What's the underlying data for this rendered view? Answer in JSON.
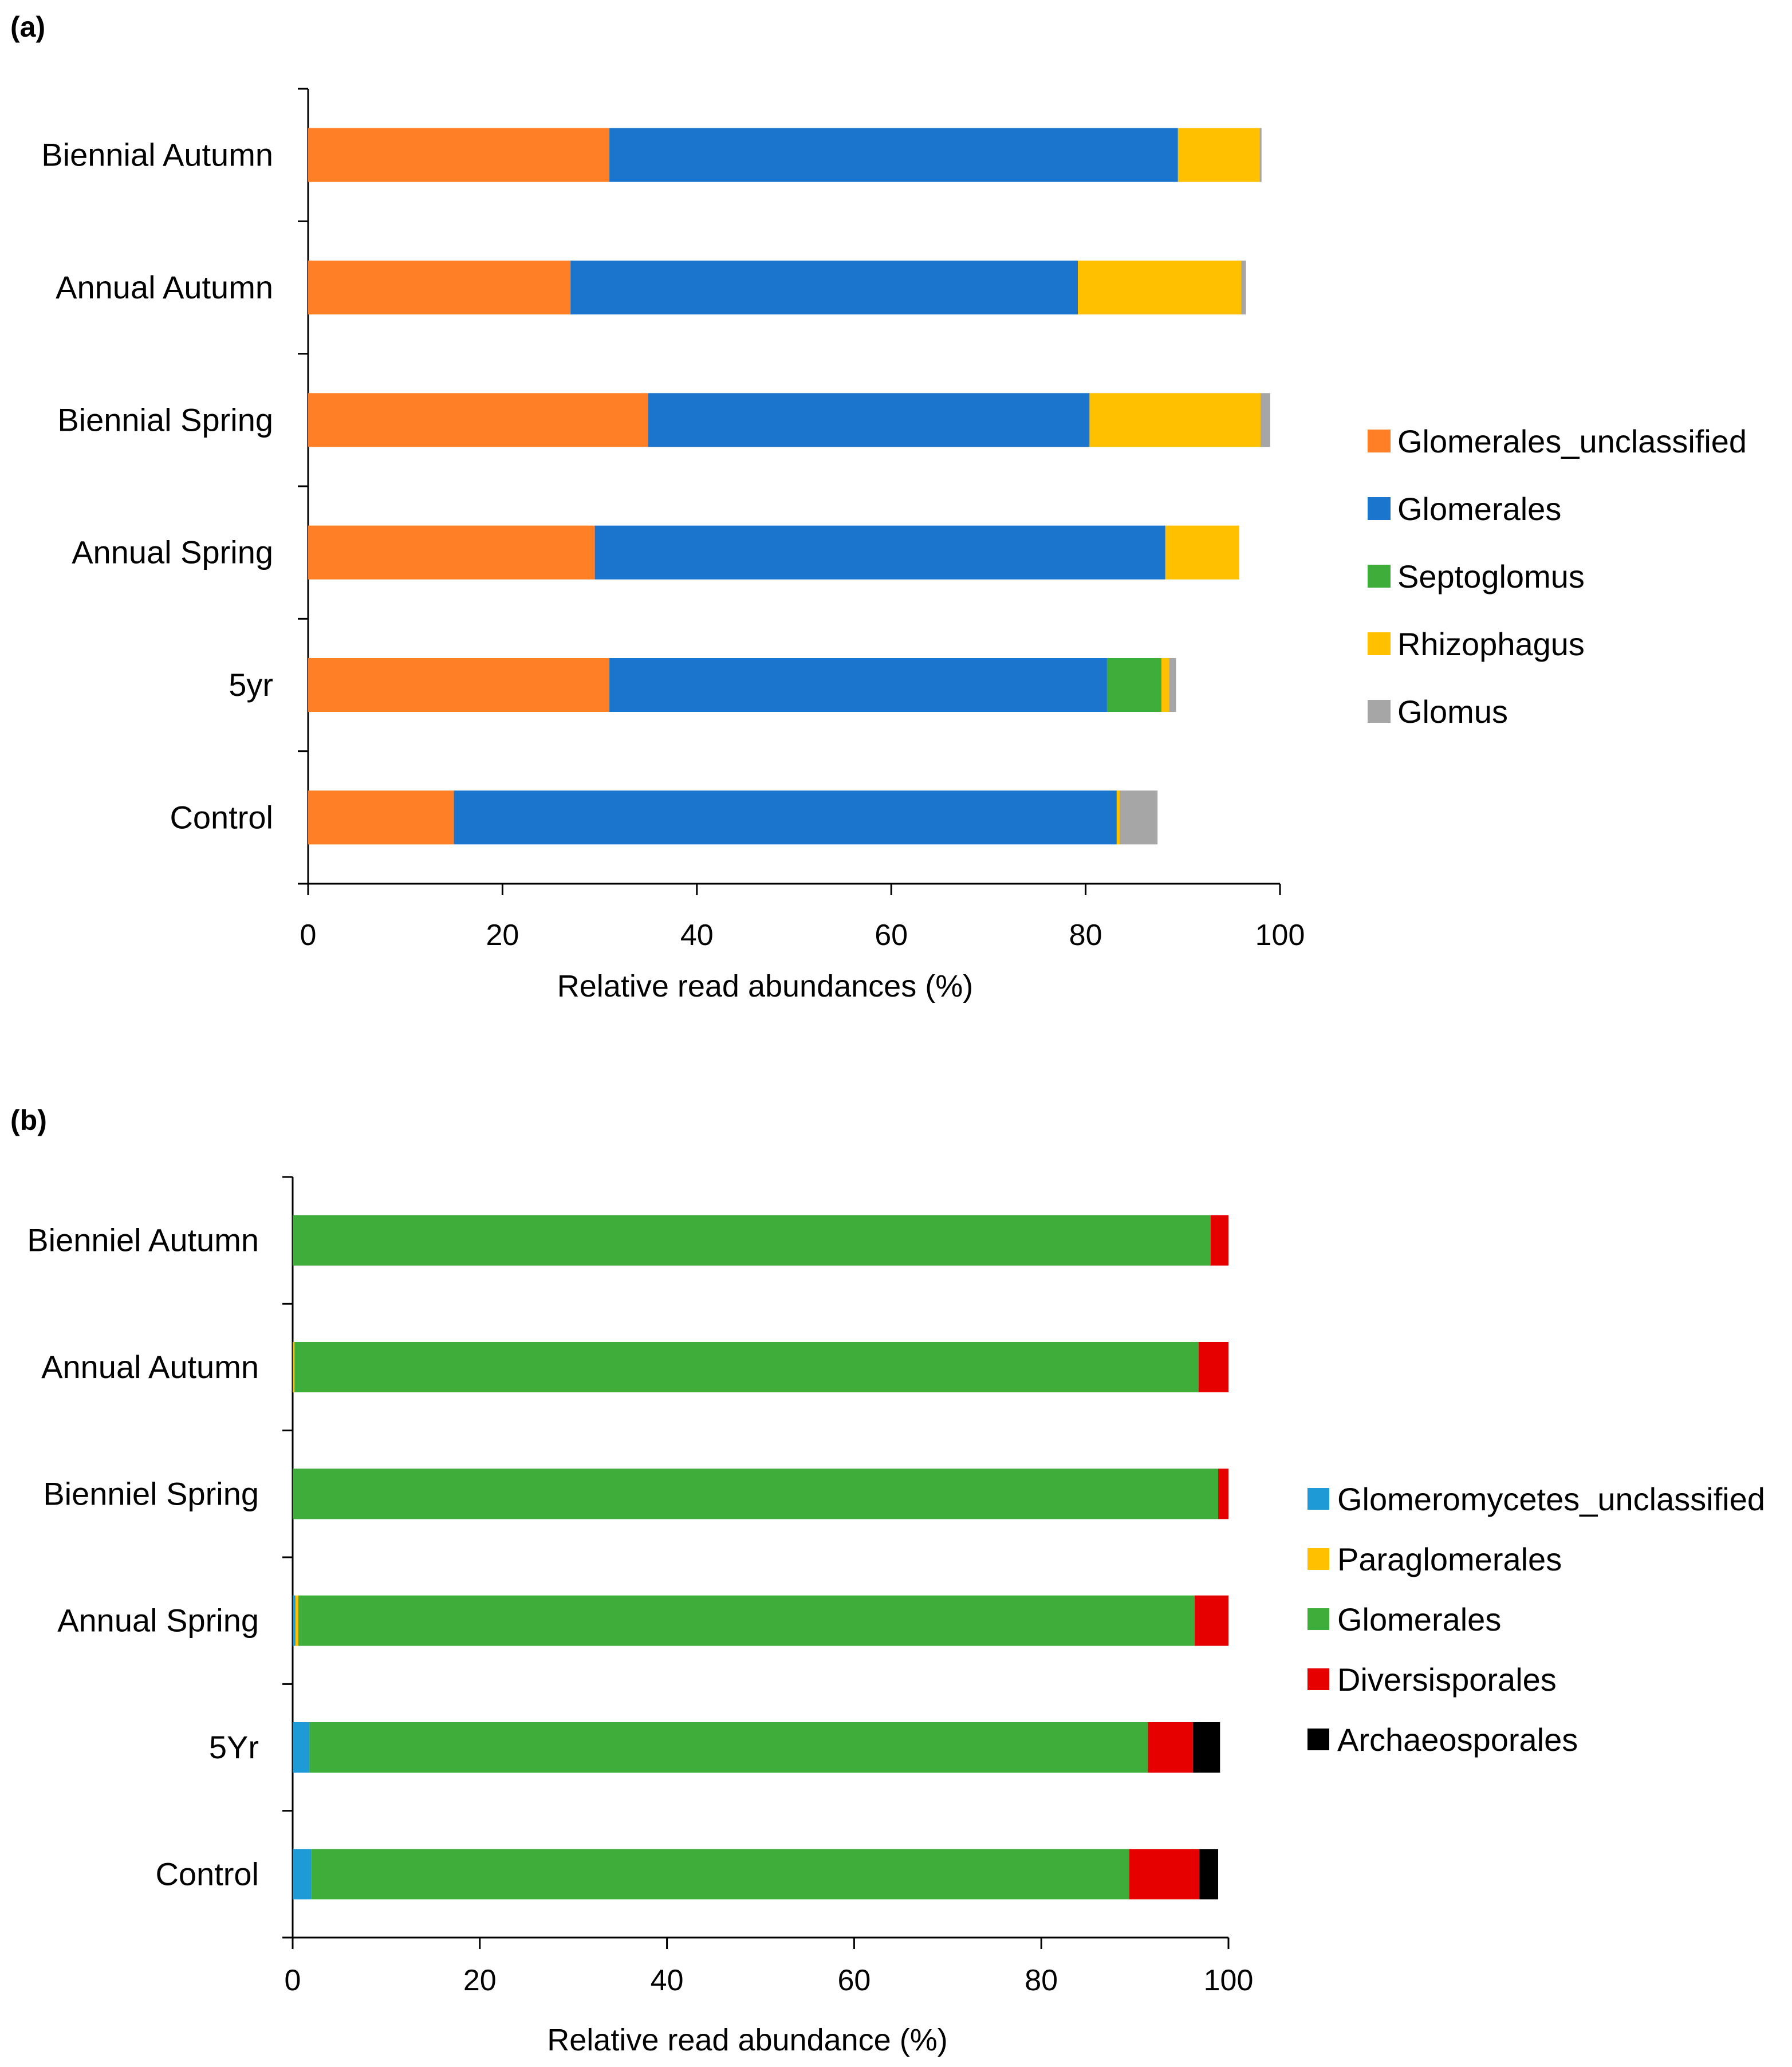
{
  "chart_data": [
    {
      "panel_label": "(a)",
      "type": "bar",
      "orientation": "horizontal",
      "stacked": true,
      "categories": [
        "Biennial Autumn",
        "Annual Autumn",
        "Biennial Spring",
        "Annual Spring",
        "5yr",
        "Control"
      ],
      "series": [
        {
          "name": "Glomerales_unclassified",
          "color": "#FF7F27",
          "values": [
            31.0,
            27.0,
            35.0,
            29.5,
            31.0,
            15.0
          ]
        },
        {
          "name": "Glomerales",
          "color": "#1B75CC",
          "values": [
            58.5,
            52.2,
            45.4,
            58.7,
            51.2,
            68.2
          ]
        },
        {
          "name": "Septoglomus",
          "color": "#3EAD3A",
          "values": [
            0.0,
            0.0,
            0.0,
            0.0,
            5.6,
            0.0
          ]
        },
        {
          "name": "Rhizophagus",
          "color": "#FFC000",
          "values": [
            8.4,
            16.8,
            17.6,
            7.6,
            0.8,
            0.3
          ]
        },
        {
          "name": "Glomus",
          "color": "#A6A6A6",
          "values": [
            0.2,
            0.5,
            1.0,
            0.0,
            0.7,
            3.9
          ]
        }
      ],
      "xlabel": "Relative read abundances (%)",
      "xlim": [
        0,
        100
      ],
      "xticks": [
        "0",
        "20",
        "40",
        "60",
        "80",
        "100"
      ],
      "legend_position": "right"
    },
    {
      "panel_label": "(b)",
      "type": "bar",
      "orientation": "horizontal",
      "stacked": true,
      "categories": [
        "Bienniel Autumn",
        "Annual Autumn",
        "Bienniel Spring",
        "Annual Spring",
        "5Yr",
        "Control"
      ],
      "series": [
        {
          "name": "Glomeromycetes_unclassified",
          "color": "#1E9AD6",
          "values": [
            0.0,
            0.0,
            0.0,
            0.3,
            1.8,
            2.0
          ]
        },
        {
          "name": "Paraglomerales",
          "color": "#FFC000",
          "values": [
            0.0,
            0.2,
            0.0,
            0.3,
            0.0,
            0.0
          ]
        },
        {
          "name": "Glomerales",
          "color": "#3EAD3A",
          "values": [
            98.1,
            96.6,
            98.9,
            95.8,
            89.6,
            87.4
          ]
        },
        {
          "name": "Diversisporales",
          "color": "#E60000",
          "values": [
            1.9,
            3.2,
            1.1,
            3.6,
            4.8,
            7.5
          ]
        },
        {
          "name": "Archaeosporales",
          "color": "#000000",
          "values": [
            0.0,
            0.0,
            0.0,
            0.0,
            2.9,
            2.0
          ]
        }
      ],
      "xlabel": "Relative read abundance (%)",
      "xlim": [
        0,
        100
      ],
      "xticks": [
        "0",
        "20",
        "40",
        "60",
        "80",
        "100"
      ],
      "legend_position": "right"
    }
  ]
}
